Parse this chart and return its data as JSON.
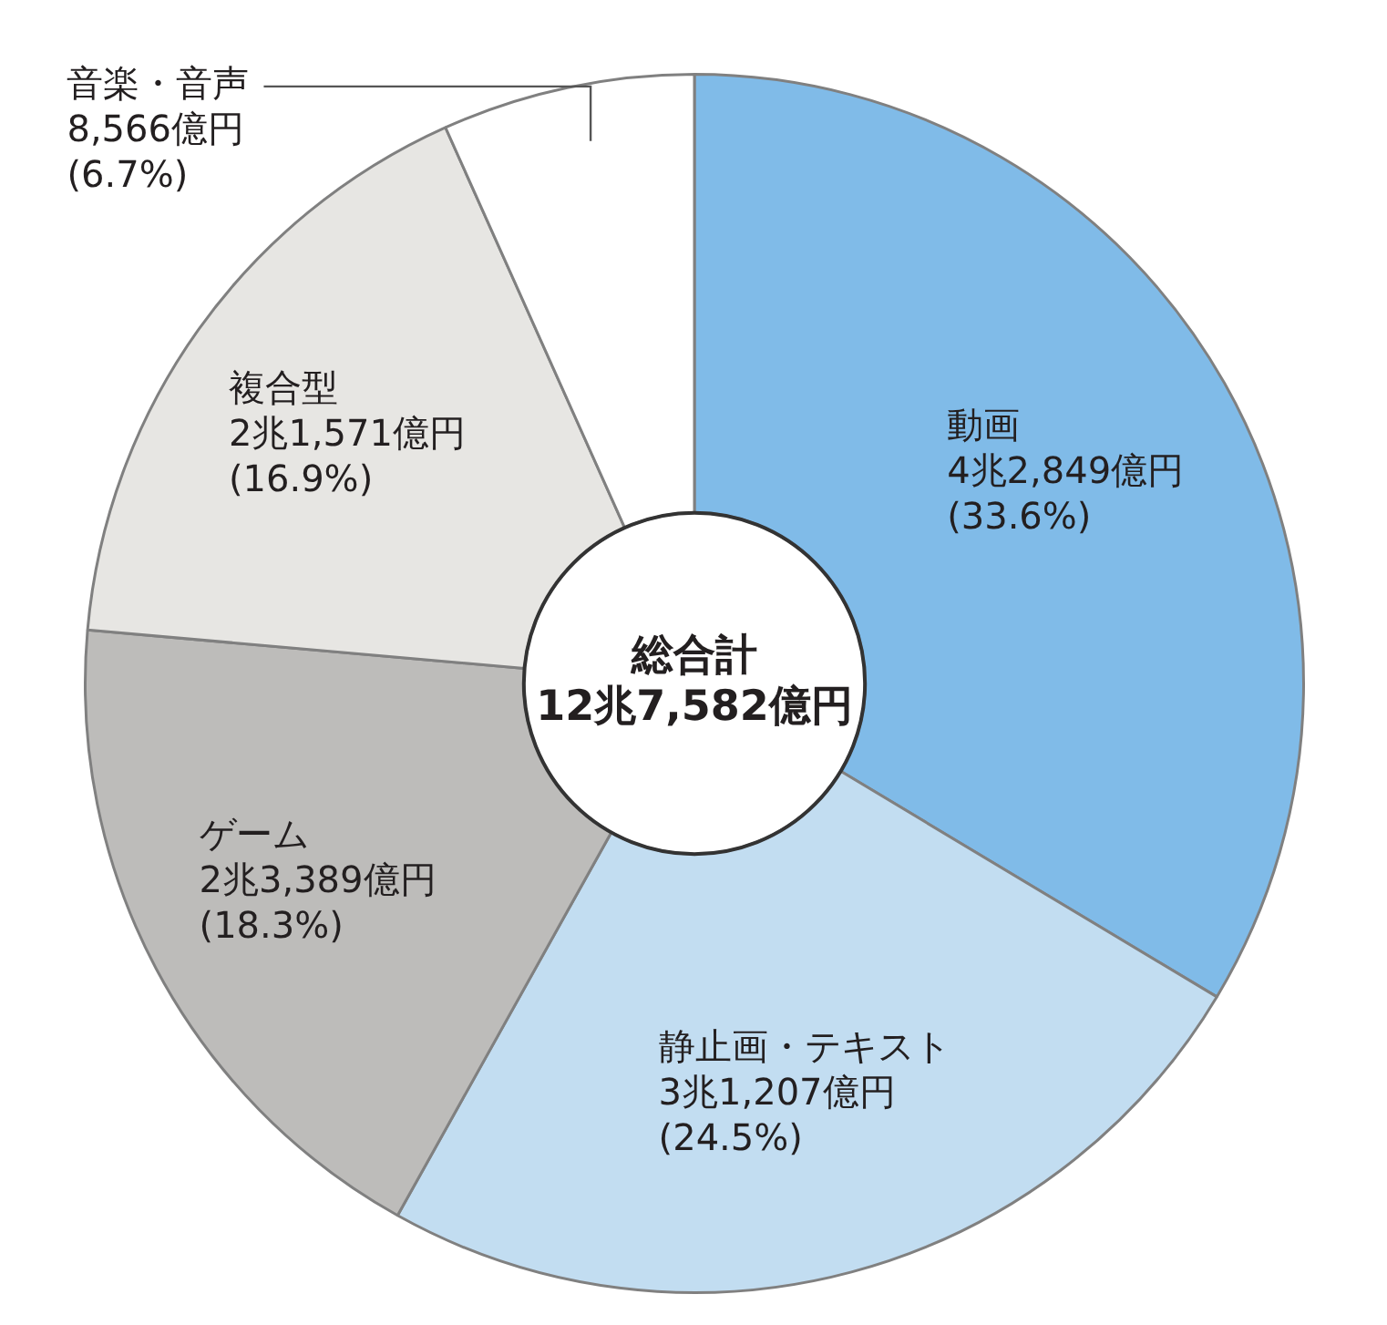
{
  "chart_data": {
    "type": "donut",
    "categories": [
      "動画",
      "静止画・テキスト",
      "ゲーム",
      "複合型",
      "音楽・音声"
    ],
    "values": [
      33.6,
      24.5,
      18.3,
      16.9,
      6.7
    ],
    "value_labels": [
      "4兆2,849億円\n(33.6%)",
      "3兆1,207億円\n(24.5%)",
      "2兆3,389億円\n(18.3%)",
      "2兆1,571億円\n(16.9%)",
      "8,566億円\n(6.7%)"
    ],
    "colors": [
      "#80bbe8",
      "#c2ddf1",
      "#bdbcba",
      "#e7e6e3",
      "#ffffff"
    ],
    "annotations": [
      "総合計",
      "12兆7,582億円"
    ],
    "legend": false
  }
}
